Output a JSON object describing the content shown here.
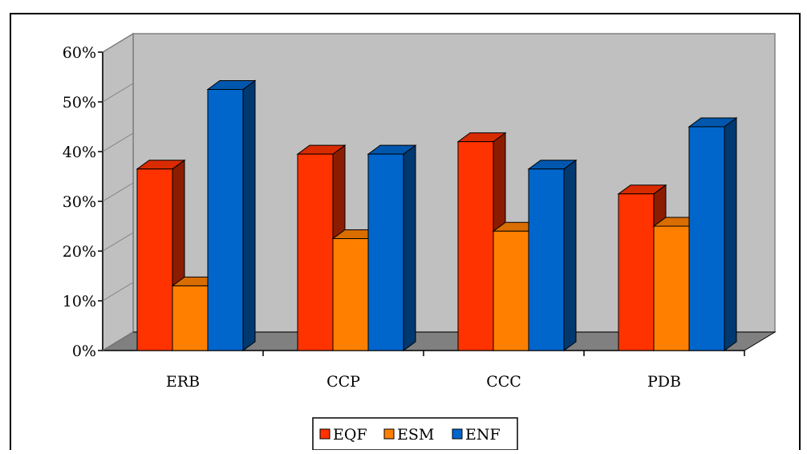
{
  "chart_data": {
    "type": "bar",
    "subtype": "3d-clustered-column",
    "title": "",
    "xlabel": "",
    "ylabel": "",
    "categories": [
      "ERB",
      "CCP",
      "CCC",
      "PDB"
    ],
    "series": [
      {
        "name": "EQF",
        "color": "#ff3300",
        "values": [
          0.365,
          0.395,
          0.42,
          0.315
        ]
      },
      {
        "name": "ESM",
        "color": "#ff8000",
        "values": [
          0.13,
          0.225,
          0.24,
          0.25
        ]
      },
      {
        "name": "ENF",
        "color": "#0066cc",
        "values": [
          0.525,
          0.395,
          0.365,
          0.45
        ]
      }
    ],
    "ylim": [
      0,
      0.6
    ],
    "y_ticks": [
      "0%",
      "10%",
      "20%",
      "30%",
      "40%",
      "50%",
      "60%"
    ],
    "grid": false,
    "legend_position": "bottom",
    "background_wall_color": "#c0c0c0",
    "floor_color": "#808080"
  }
}
